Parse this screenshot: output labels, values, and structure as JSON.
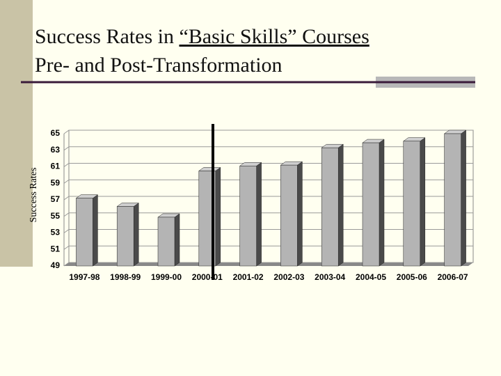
{
  "chart_data": {
    "type": "bar",
    "title": [
      "Success Rates in ",
      "“Basic Skills” Courses"
    ],
    "subtitle": "Pre- and Post-Transformation",
    "y_label": "Success Rates",
    "categories": [
      "1997-98",
      "1998-99",
      "1999-00",
      "2000-01",
      "2001-02",
      "2002-03",
      "2003-04",
      "2004-05",
      "2005-06",
      "2006-07"
    ],
    "values": [
      57.2,
      56.2,
      54.9,
      60.5,
      61.1,
      61.2,
      63.3,
      63.9,
      64.1,
      65.0
    ],
    "color": "#b4b4b4",
    "ylim": [
      49,
      65
    ],
    "yticks": [
      49,
      51,
      53,
      55,
      57,
      59,
      61,
      63,
      65
    ],
    "grid": true
  }
}
